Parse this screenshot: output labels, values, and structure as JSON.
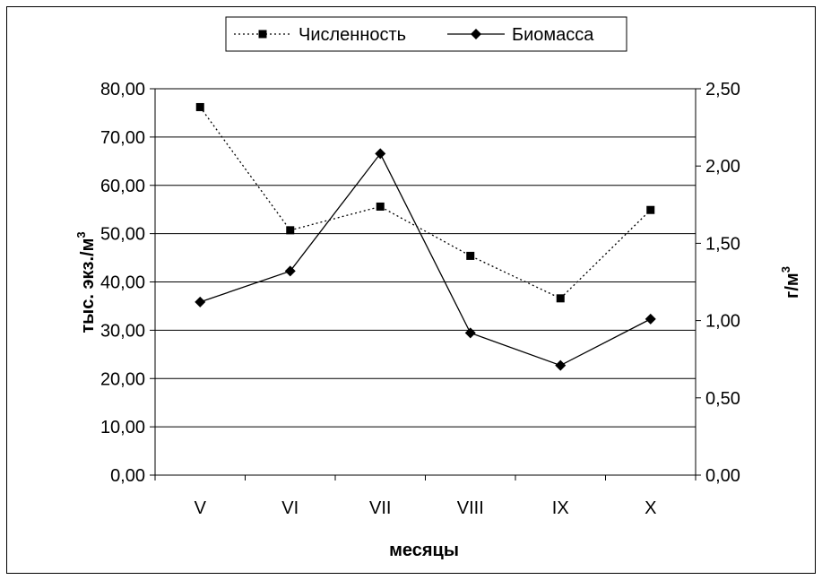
{
  "chart_data": {
    "type": "line",
    "categories": [
      "V",
      "VI",
      "VII",
      "VIII",
      "IX",
      "X"
    ],
    "xlabel": "месяцы",
    "ylabel_left": "тыс. экз./м",
    "ylabel_right": "г/м",
    "ylabel_superscript": "3",
    "y_left": {
      "lim": [
        0,
        80
      ],
      "ticks": [
        "0,00",
        "10,00",
        "20,00",
        "30,00",
        "40,00",
        "50,00",
        "60,00",
        "70,00",
        "80,00"
      ]
    },
    "y_right": {
      "lim": [
        0,
        2.5
      ],
      "ticks": [
        "0,00",
        "0,50",
        "1,00",
        "1,50",
        "2,00",
        "2,50"
      ]
    },
    "grid": "horizontal",
    "legend_position": "top-center",
    "series": [
      {
        "name": "Численность",
        "axis": "left",
        "marker": "square",
        "line_style": "dotted",
        "color": "#000000",
        "values": [
          76.2,
          50.7,
          55.6,
          45.4,
          36.6,
          54.9
        ]
      },
      {
        "name": "Биомасса",
        "axis": "right",
        "marker": "diamond",
        "line_style": "solid",
        "color": "#000000",
        "values": [
          1.12,
          1.32,
          2.08,
          0.92,
          0.71,
          1.01
        ]
      }
    ]
  }
}
